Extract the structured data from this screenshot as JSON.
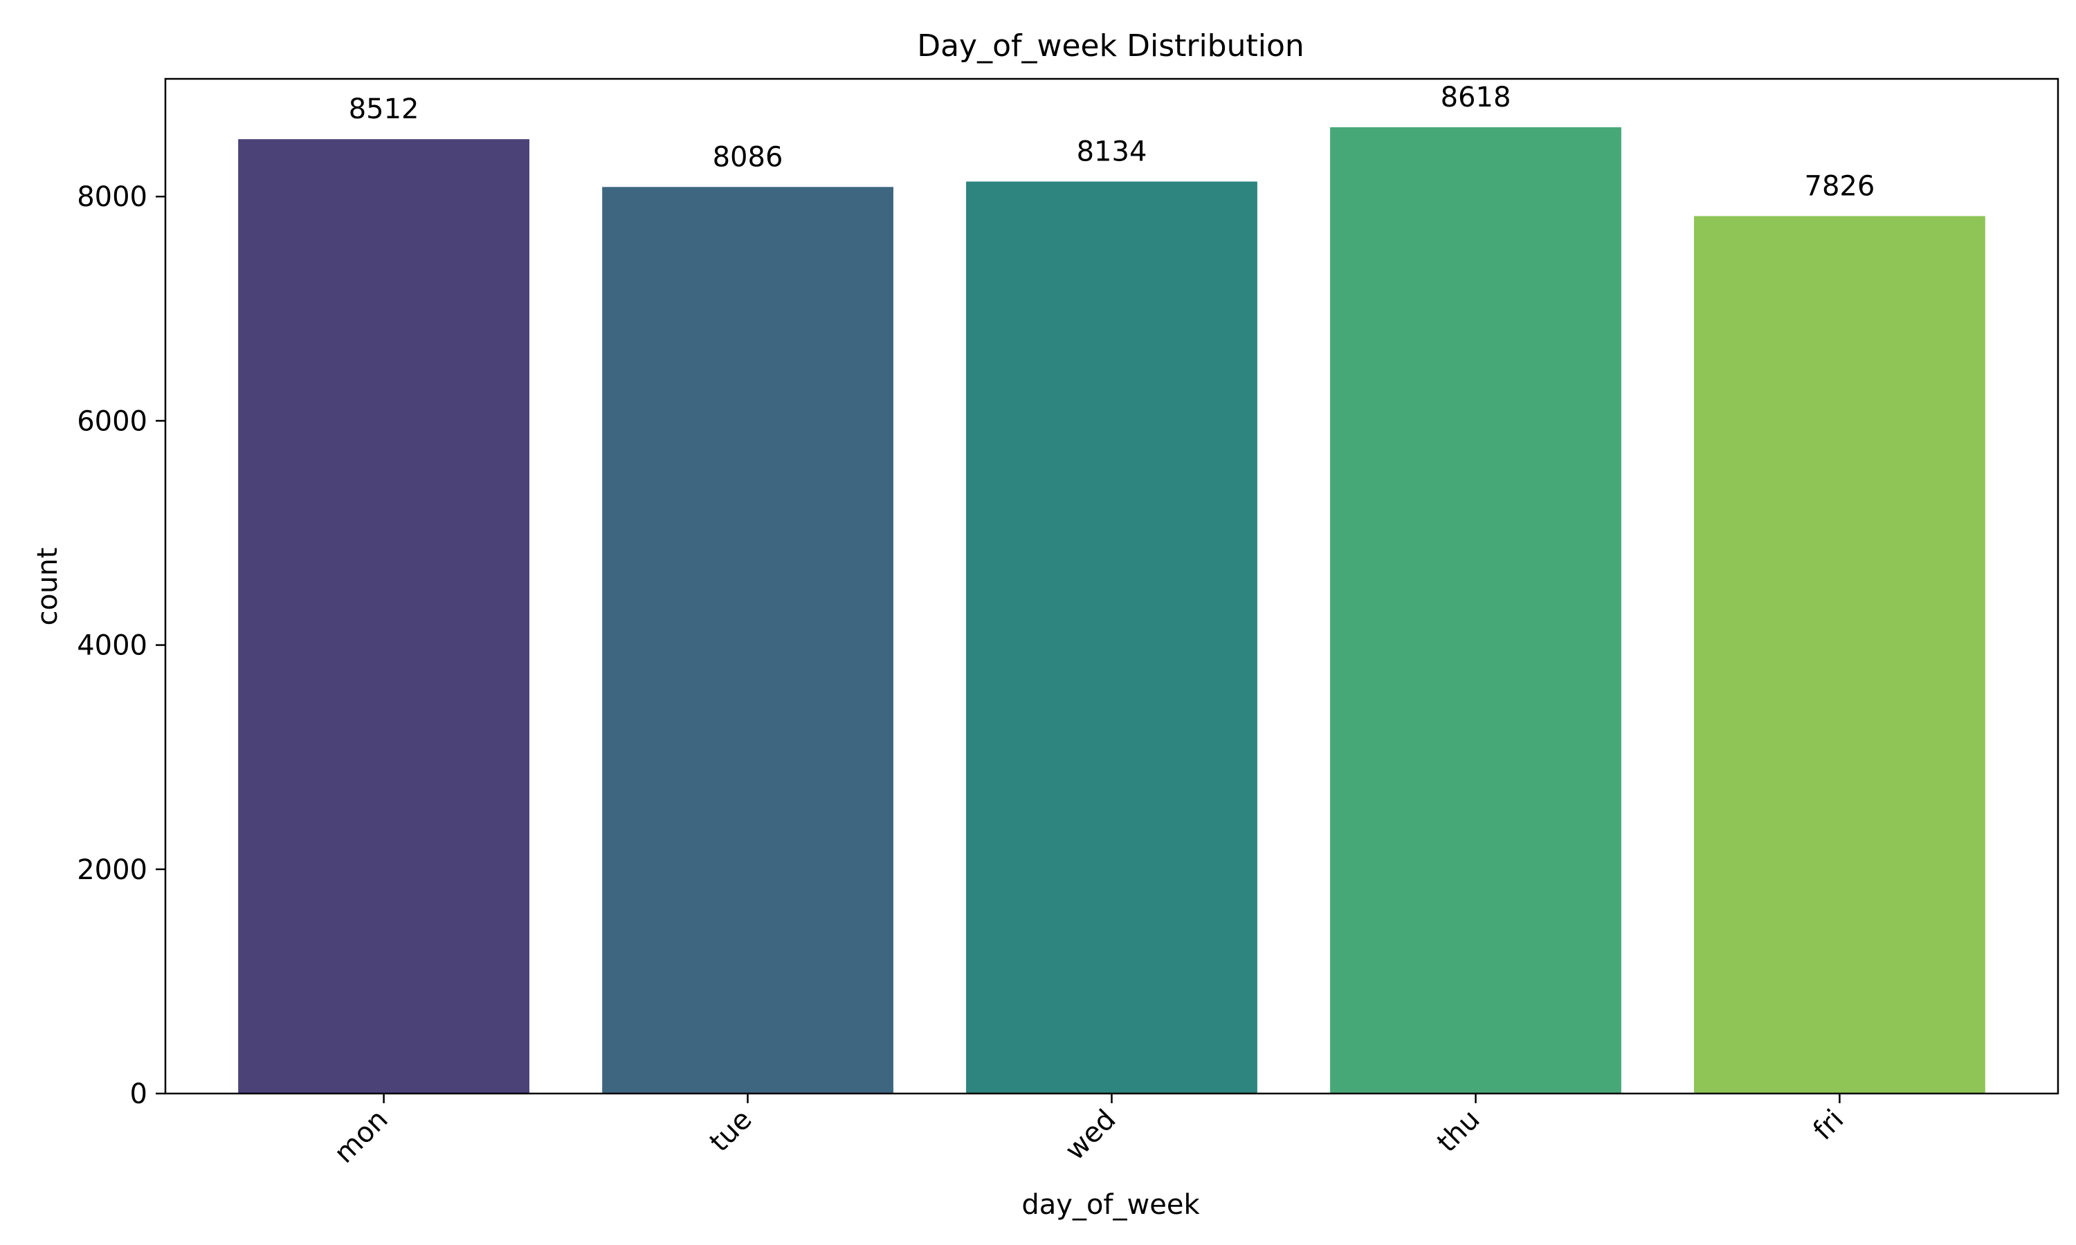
{
  "chart_data": {
    "type": "bar",
    "title": "Day_of_week Distribution",
    "xlabel": "day_of_week",
    "ylabel": "count",
    "categories": [
      "mon",
      "tue",
      "wed",
      "thu",
      "fri"
    ],
    "values": [
      8512,
      8086,
      8134,
      8618,
      7826
    ],
    "data_labels": [
      "8512",
      "8086",
      "8134",
      "8618",
      "7826"
    ],
    "colors": [
      "#4b4278",
      "#3e6680",
      "#2e847e",
      "#47a877",
      "#8fc456"
    ],
    "ylim": [
      0,
      9050
    ],
    "yticks": [
      0,
      2000,
      4000,
      6000,
      8000
    ],
    "ytick_labels": [
      "0",
      "2000",
      "4000",
      "6000",
      "8000"
    ],
    "grid": false,
    "legend": "none",
    "xtick_rotation_deg": 45
  }
}
